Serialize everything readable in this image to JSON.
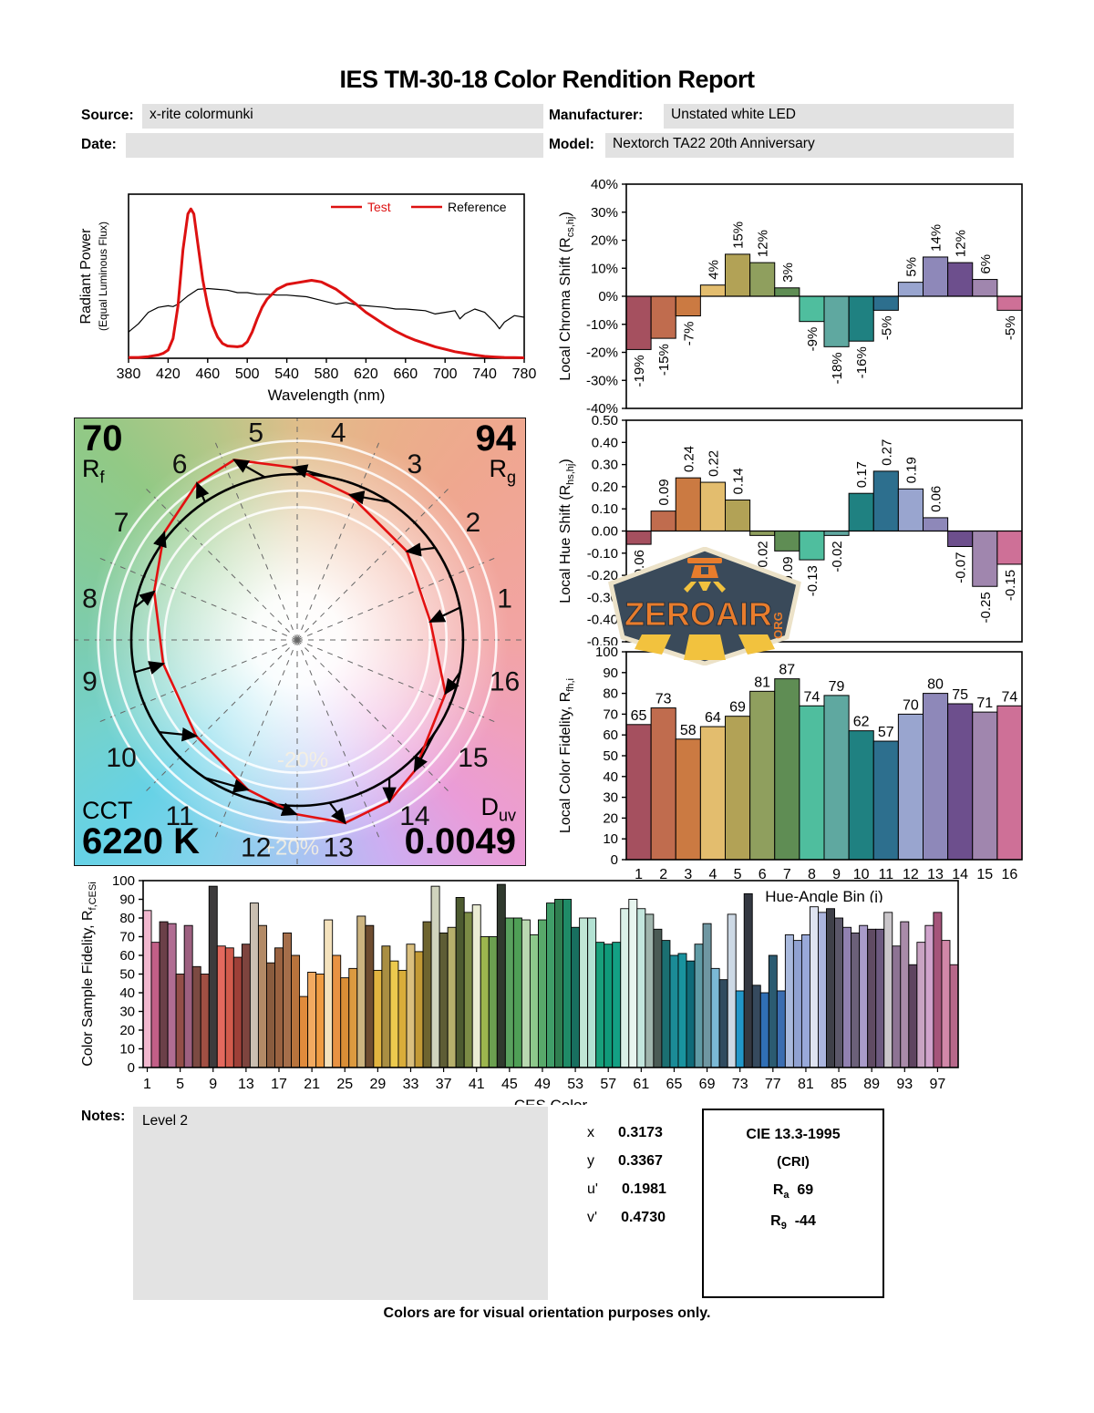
{
  "report": {
    "title": "IES TM-30-18 Color Rendition Report",
    "fields": {
      "source_label": "Source:",
      "source": "x-rite colormunki",
      "date_label": "Date:",
      "date": "",
      "manufacturer_label": "Manufacturer:",
      "manufacturer": "Unstated white LED",
      "model_label": "Model:",
      "model": "Nextorch TA22 20th Anniversary"
    },
    "notes_label": "Notes:",
    "notes": "Level 2",
    "footer": "Colors are for visual orientation purposes only.",
    "chromaticity": [
      {
        "label": "x",
        "value": "0.3173"
      },
      {
        "label": "y",
        "value": "0.3367"
      },
      {
        "label": "u'",
        "value": "0.1981"
      },
      {
        "label": "v'",
        "value": "0.4730"
      }
    ],
    "cri_box": {
      "title": "CIE 13.3-1995",
      "subtitle": "(CRI)",
      "ra_main": "R",
      "ra_sub": "a",
      "ra_value": "69",
      "r9_main": "R",
      "r9_sub": "9",
      "r9_value": "-44"
    },
    "badge": {
      "word": "ZEROAIR",
      "org": "ORG"
    }
  },
  "chart_data": [
    {
      "type": "line",
      "name": "spectral-power-distribution",
      "xlabel": "Wavelength (nm)",
      "ylabel_line1": "Radiant Power",
      "ylabel_line2": "(Equal Luminous Flux)",
      "x_ticks": [
        380,
        420,
        460,
        500,
        540,
        580,
        620,
        660,
        700,
        740,
        780
      ],
      "xlim": [
        380,
        780
      ],
      "ylim": [
        0,
        1
      ],
      "grid": false,
      "legend_position": "top-right",
      "legend": [
        {
          "label": "Test",
          "line_color": "#dd1111",
          "text_color": "#dd1111"
        },
        {
          "label": "Reference",
          "line_color": "#dd1111",
          "text_color": "#000000"
        }
      ],
      "series": [
        {
          "name": "Test",
          "color": "#dd1111",
          "width": 3,
          "x": [
            380,
            390,
            400,
            410,
            415,
            420,
            425,
            430,
            435,
            440,
            443,
            446,
            450,
            455,
            460,
            465,
            470,
            475,
            480,
            490,
            495,
            500,
            505,
            510,
            515,
            520,
            530,
            540,
            550,
            560,
            565,
            570,
            575,
            580,
            590,
            600,
            610,
            620,
            630,
            640,
            650,
            660,
            670,
            680,
            690,
            700,
            710,
            720,
            730,
            740,
            750,
            760,
            770,
            780
          ],
          "y": [
            0.005,
            0.005,
            0.01,
            0.02,
            0.03,
            0.05,
            0.12,
            0.32,
            0.66,
            0.88,
            0.91,
            0.88,
            0.7,
            0.48,
            0.32,
            0.2,
            0.13,
            0.09,
            0.075,
            0.07,
            0.075,
            0.1,
            0.16,
            0.24,
            0.31,
            0.36,
            0.42,
            0.45,
            0.46,
            0.47,
            0.475,
            0.47,
            0.465,
            0.45,
            0.42,
            0.375,
            0.33,
            0.28,
            0.24,
            0.2,
            0.165,
            0.135,
            0.11,
            0.09,
            0.07,
            0.055,
            0.04,
            0.03,
            0.02,
            0.012,
            0.008,
            0.005,
            0.004,
            0.003
          ]
        },
        {
          "name": "Reference",
          "color": "#000000",
          "width": 1.2,
          "x": [
            380,
            390,
            400,
            410,
            420,
            425,
            430,
            440,
            450,
            460,
            470,
            480,
            490,
            500,
            510,
            520,
            530,
            540,
            550,
            560,
            570,
            580,
            590,
            600,
            610,
            620,
            630,
            640,
            650,
            660,
            670,
            680,
            690,
            700,
            710,
            715,
            720,
            730,
            740,
            750,
            755,
            760,
            770,
            780
          ],
          "y": [
            0.16,
            0.21,
            0.28,
            0.31,
            0.32,
            0.315,
            0.33,
            0.38,
            0.42,
            0.425,
            0.42,
            0.415,
            0.4,
            0.4,
            0.39,
            0.39,
            0.385,
            0.385,
            0.38,
            0.375,
            0.36,
            0.345,
            0.33,
            0.34,
            0.325,
            0.32,
            0.315,
            0.31,
            0.3,
            0.3,
            0.295,
            0.29,
            0.27,
            0.28,
            0.29,
            0.24,
            0.27,
            0.3,
            0.28,
            0.22,
            0.18,
            0.22,
            0.26,
            0.25
          ]
        }
      ]
    },
    {
      "type": "cvg",
      "name": "color-vector-graphic",
      "rf_value": "70",
      "rf_main": "R",
      "rf_sub": "f",
      "rg_value": "94",
      "rg_main": "R",
      "rg_sub": "g",
      "cct_label": "CCT",
      "cct_value": "6220 K",
      "duv_main": "D",
      "duv_sub": "uv",
      "duv_value": "0.0049",
      "bin_labels": [
        "1",
        "2",
        "3",
        "4",
        "5",
        "6",
        "7",
        "8",
        "9",
        "10",
        "11",
        "12",
        "13",
        "14",
        "15",
        "16"
      ],
      "inner_circle_label": "-20%",
      "outer_circle_label": "+20%"
    },
    {
      "type": "bar",
      "name": "local-chroma-shift",
      "ylabel_pre": "Local Chroma Shift (R",
      "ylabel_sub": "cs,hj",
      "ylabel_post": ")",
      "ylim": [
        -40,
        40
      ],
      "yticks": [
        "40%",
        "30%",
        "20%",
        "10%",
        "0%",
        "-10%",
        "-20%",
        "-30%",
        "-40%"
      ],
      "values": [
        -19,
        -15,
        -7,
        4,
        15,
        12,
        3,
        -9,
        -18,
        -16,
        -5,
        5,
        14,
        12,
        6,
        -5
      ],
      "labels": [
        "-19%",
        "-15%",
        "-7%",
        "4%",
        "15%",
        "12%",
        "3%",
        "-9%",
        "-18%",
        "-16%",
        "-5%",
        "5%",
        "14%",
        "12%",
        "6%",
        "-5%"
      ],
      "bin_colors": [
        "#a5505f",
        "#c06c4e",
        "#cb7a42",
        "#e3bd6e",
        "#b2a256",
        "#8f9f5e",
        "#5f8d54",
        "#4fbe9e",
        "#5fa8a0",
        "#1f8181",
        "#2d6f8e",
        "#99a5cf",
        "#8e88b9",
        "#6d4f8d",
        "#a086ae",
        "#ce7097"
      ]
    },
    {
      "type": "bar",
      "name": "local-hue-shift",
      "ylabel_pre": "Local Hue Shift (R",
      "ylabel_sub": "hs,hj",
      "ylabel_post": ")",
      "ylim": [
        -0.5,
        0.5
      ],
      "yticks": [
        "0.50",
        "0.40",
        "0.30",
        "0.20",
        "0.10",
        "0.00",
        "-0.10",
        "-0.20",
        "-0.30",
        "-0.40",
        "-0.50"
      ],
      "values": [
        -0.06,
        0.09,
        0.24,
        0.22,
        0.14,
        -0.02,
        -0.09,
        -0.13,
        -0.02,
        0.17,
        0.27,
        0.19,
        0.06,
        -0.07,
        -0.25,
        -0.15
      ],
      "labels": [
        "-0.06",
        "0.09",
        "0.24",
        "0.22",
        "0.14",
        "-0.02",
        "-0.09",
        "-0.13",
        "-0.02",
        "0.17",
        "0.27",
        "0.19",
        "0.06",
        "-0.07",
        "-0.25",
        "-0.15"
      ]
    },
    {
      "type": "bar",
      "name": "local-color-fidelity",
      "ylabel_pre": "Local Color Fidelity, R",
      "ylabel_sub": "fh,i",
      "ylabel_post": "",
      "xlabel": "Hue-Angle Bin (j)",
      "ylim": [
        0,
        100
      ],
      "yticks": [
        "100",
        "90",
        "80",
        "70",
        "60",
        "50",
        "40",
        "30",
        "20",
        "10",
        "0"
      ],
      "categories": [
        "1",
        "2",
        "3",
        "4",
        "5",
        "6",
        "7",
        "8",
        "9",
        "10",
        "11",
        "12",
        "13",
        "14",
        "15",
        "16"
      ],
      "values": [
        65,
        73,
        58,
        64,
        69,
        81,
        87,
        74,
        79,
        62,
        57,
        70,
        80,
        75,
        71,
        74
      ]
    },
    {
      "type": "bar",
      "name": "color-sample-fidelity",
      "ylabel_pre": "Color Sample Fidelity, R",
      "ylabel_sub": "f,CESi",
      "ylabel_post": "",
      "xlabel": "CES Color",
      "ylim": [
        0,
        100
      ],
      "yticks": [
        "100",
        "90",
        "80",
        "70",
        "60",
        "50",
        "40",
        "30",
        "20",
        "10",
        "0"
      ],
      "xticks": [
        1,
        5,
        9,
        13,
        17,
        21,
        25,
        29,
        33,
        37,
        41,
        45,
        49,
        53,
        57,
        61,
        65,
        69,
        73,
        77,
        81,
        85,
        89,
        93,
        97
      ],
      "values": [
        84,
        67,
        78,
        77,
        50,
        76,
        54,
        50,
        97,
        65,
        64,
        59,
        66,
        88,
        76,
        56,
        64,
        72,
        60,
        38,
        51,
        50,
        79,
        60,
        48,
        53,
        81,
        76,
        52,
        65,
        57,
        52,
        66,
        62,
        78,
        97,
        72,
        75,
        91,
        83,
        87,
        70,
        70,
        98,
        80,
        80,
        79,
        71,
        79,
        88,
        90,
        90,
        75,
        80,
        80,
        67,
        66,
        67,
        85,
        90,
        85,
        82,
        74,
        68,
        60,
        61,
        57,
        66,
        77,
        53,
        47,
        82,
        41,
        93,
        44,
        40,
        60,
        41,
        71,
        68,
        71,
        86,
        83,
        85,
        80,
        75,
        72,
        76,
        74,
        74,
        83,
        65,
        78,
        55,
        67,
        76,
        83,
        68,
        55
      ],
      "colors": [
        "#f2b8cf",
        "#c25f87",
        "#6b4048",
        "#b06d92",
        "#934e48",
        "#9d6080",
        "#7c4a42",
        "#a14f43",
        "#3d3b3c",
        "#e4695e",
        "#d25b4c",
        "#9e4038",
        "#7e443e",
        "#cabfb1",
        "#b28a66",
        "#8a5c3e",
        "#9a6240",
        "#a56e4a",
        "#b8733c",
        "#e08b3c",
        "#f2aa60",
        "#ef9c42",
        "#f4e2bd",
        "#e89242",
        "#d98e36",
        "#dc9a40",
        "#ccb480",
        "#6e4c30",
        "#e2b440",
        "#a98e42",
        "#ecca4e",
        "#d9ad3a",
        "#dabf7e",
        "#c39a36",
        "#6e642f",
        "#d0d3bd",
        "#5e5d35",
        "#b6b06c",
        "#4d5b30",
        "#7b8b45",
        "#eaecd3",
        "#9cb54e",
        "#6ba050",
        "#303a2e",
        "#59a15e",
        "#4f9f56",
        "#b9d8b1",
        "#8dc88b",
        "#58a96a",
        "#409e69",
        "#2f7e50",
        "#1f8b67",
        "#186f5f",
        "#c0e6d5",
        "#b3e2d3",
        "#18a07b",
        "#109a79",
        "#13a084",
        "#daf0e7",
        "#e7f5ef",
        "#c3e6dd",
        "#a0b5ad",
        "#4b5b55",
        "#1b6f71",
        "#1b8b97",
        "#19939f",
        "#106b79",
        "#609ba5",
        "#6f97a2",
        "#7bb9d5",
        "#304b5f",
        "#cdd9e5",
        "#2297c9",
        "#343841",
        "#364a5e",
        "#306fb5",
        "#2b5b71",
        "#3b6db1",
        "#a9b9dd",
        "#90a1d1",
        "#99a9d9",
        "#dee3f1",
        "#abb5de",
        "#3f4049",
        "#5b5769",
        "#9181b1",
        "#6b6079",
        "#a99bc9",
        "#604b63",
        "#6d5a80",
        "#cac6ca",
        "#8d7393",
        "#a98ba9",
        "#5f4460",
        "#c9a3c3",
        "#d0a3cc",
        "#a5547a",
        "#d187a8",
        "#b7688a"
      ]
    }
  ]
}
